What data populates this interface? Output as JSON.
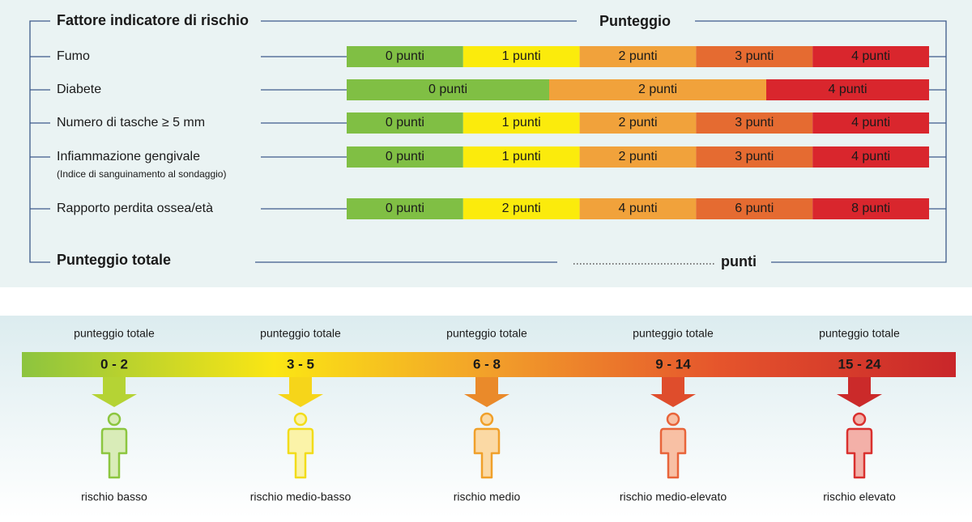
{
  "table": {
    "header_factor": "Fattore indicatore di rischio",
    "header_score": "Punteggio",
    "rows": [
      {
        "label": "Fumo",
        "cells": [
          "0 punti",
          "1 punti",
          "2 punti",
          "3 punti",
          "4 punti"
        ]
      },
      {
        "label": "Diabete",
        "cells": [
          "0 punti",
          "2 punti",
          "4 punti"
        ]
      },
      {
        "label": "Numero di tasche ≥ 5 mm",
        "cells": [
          "0 punti",
          "1 punti",
          "2 punti",
          "3 punti",
          "4 punti"
        ]
      },
      {
        "label": "Infiammazione gengivale",
        "sublabel": "(Indice di sanguinamento al sondaggio)",
        "cells": [
          "0 punti",
          "1 punti",
          "2 punti",
          "3 punti",
          "4 punti"
        ]
      },
      {
        "label": "Rapporto perdita ossea/età",
        "cells": [
          "0 punti",
          "2 punti",
          "4 punti",
          "6 punti",
          "8 punti"
        ]
      }
    ],
    "total_label": "Punteggio totale",
    "total_unit": "punti"
  },
  "scale": {
    "items": [
      {
        "caption": "punteggio totale",
        "range": "0 - 2",
        "risk": "rischio basso"
      },
      {
        "caption": "punteggio totale",
        "range": "3 - 5",
        "risk": "rischio medio-basso"
      },
      {
        "caption": "punteggio totale",
        "range": "6 - 8",
        "risk": "rischio medio"
      },
      {
        "caption": "punteggio totale",
        "range": "9 - 14",
        "risk": "rischio medio-elevato"
      },
      {
        "caption": "punteggio totale",
        "range": "15 - 24",
        "risk": "rischio elevato"
      }
    ]
  }
}
